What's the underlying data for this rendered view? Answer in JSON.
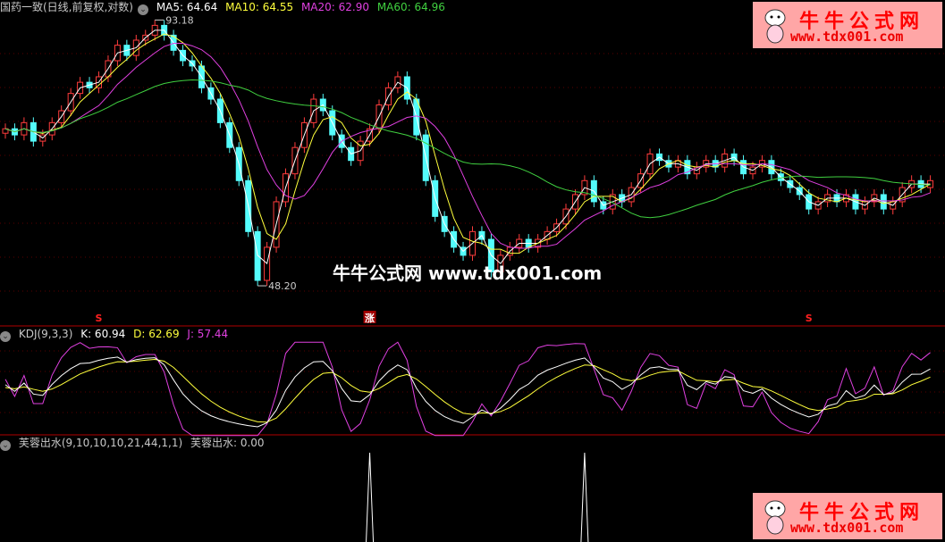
{
  "main_header": {
    "title": "国药一致(日线,前复权,对数)",
    "ma5": "MA5: 64.64",
    "ma10": "MA10: 64.55",
    "ma20": "MA20: 62.90",
    "ma60": "MA60: 64.96"
  },
  "kdj_header": {
    "title": "KDJ(9,3,3)",
    "k": "K: 60.94",
    "d": "D: 62.69",
    "j": "J: 57.44"
  },
  "fr_header": {
    "title": "芙蓉出水(9,10,10,10,21,44,1,1)",
    "value": "芙蓉出水: 0.00"
  },
  "watermark": "牛牛公式网 www.tdx001.com",
  "logo": {
    "name": "牛牛公式网",
    "url": "www.tdx001.com"
  },
  "colors": {
    "up": "#ff3c3c",
    "down": "#54fcfc",
    "ma5": "#ffffff",
    "ma10": "#ffff3c",
    "ma20": "#e040e0",
    "ma60": "#40d040",
    "k": "#ffffff",
    "d": "#ffff3c",
    "j": "#e040e0",
    "divider": "#b00000"
  },
  "chart_data": [
    {
      "type": "candlestick",
      "scale": "log",
      "ylim": [
        48.2,
        93.18
      ],
      "closes": [
        73,
        72,
        74,
        71,
        72,
        74,
        76,
        79,
        81,
        80,
        82,
        85,
        88,
        86,
        89,
        90,
        92,
        90,
        87,
        85,
        84,
        80,
        78,
        74,
        70,
        65,
        58,
        52,
        56,
        62,
        66,
        70,
        74,
        78,
        76,
        72,
        70,
        68,
        71,
        73,
        77,
        80,
        82,
        78,
        72,
        65,
        60,
        58,
        56,
        55,
        58,
        57,
        53,
        55,
        56,
        57,
        56,
        57,
        58,
        59,
        61,
        63,
        65,
        62,
        61,
        63,
        62,
        64,
        66,
        69,
        68,
        67,
        68,
        66,
        67,
        68,
        67,
        69,
        68,
        66,
        67,
        68,
        66,
        65,
        64,
        63,
        61,
        62,
        63,
        62,
        63,
        61,
        62,
        63,
        61,
        62,
        64,
        65,
        64,
        65
      ],
      "annotations": [
        {
          "label": "93.18",
          "index": 16,
          "kind": "high"
        },
        {
          "label": "48.20",
          "index": 27,
          "kind": "low"
        }
      ],
      "markers": [
        {
          "label": "S",
          "index": 10
        },
        {
          "label": "涨",
          "index": 39
        },
        {
          "label": "S",
          "index": 86
        }
      ],
      "series": [
        {
          "name": "MA5"
        },
        {
          "name": "MA10"
        },
        {
          "name": "MA20"
        },
        {
          "name": "MA60"
        }
      ]
    },
    {
      "type": "line",
      "series": [
        {
          "name": "K"
        },
        {
          "name": "D"
        },
        {
          "name": "J"
        }
      ],
      "last": {
        "K": 60.94,
        "D": 62.69,
        "J": 57.44
      }
    },
    {
      "type": "line",
      "series": [
        {
          "name": "芙蓉出水",
          "signal_indexes": [
            39,
            62
          ],
          "last": 0.0
        }
      ]
    }
  ]
}
